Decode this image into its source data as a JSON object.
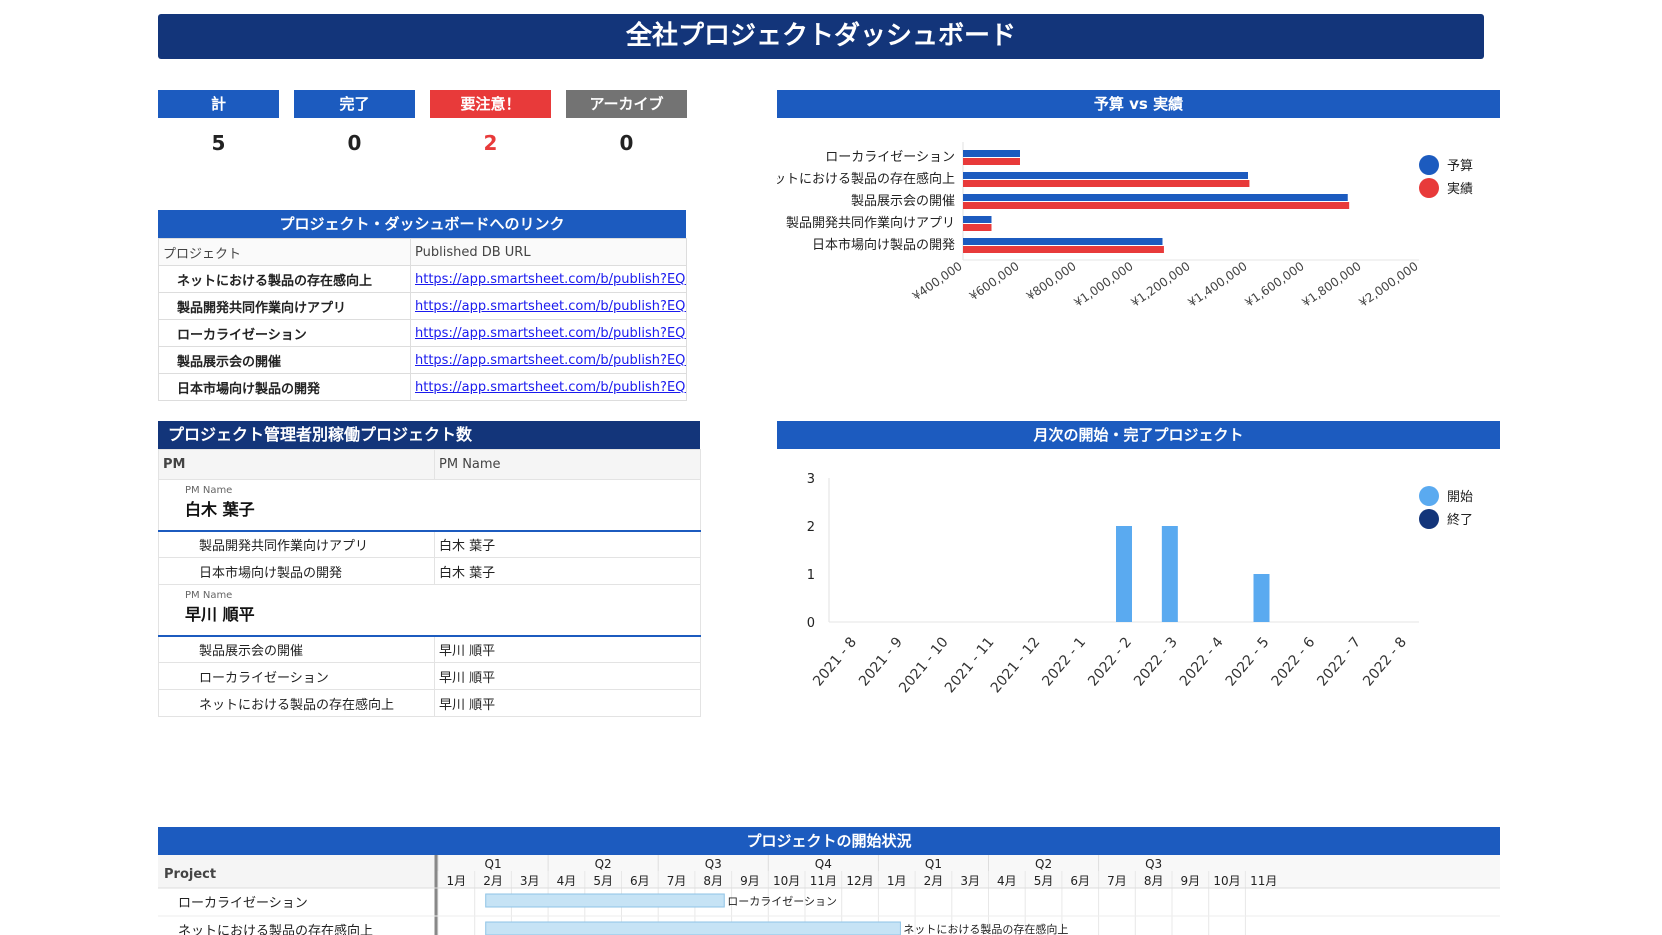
{
  "title": "全社プロジェクトダッシュボード",
  "kpis": [
    {
      "label": "計",
      "value": "5",
      "color": "#1c5bbf",
      "value_color": "#222222"
    },
    {
      "label": "完了",
      "value": "0",
      "color": "#1c5bbf",
      "value_color": "#222222"
    },
    {
      "label": "要注意！",
      "value": "2",
      "color": "#e83a3a",
      "value_color": "#e83a3a"
    },
    {
      "label": "アーカイブ",
      "value": "0",
      "color": "#737373",
      "value_color": "#222222"
    }
  ],
  "links": {
    "title": "プロジェクト・ダッシュボードへのリンク",
    "col_project": "プロジェクト",
    "col_url": "Published DB URL",
    "rows": [
      {
        "project": "ネットにおける製品の存在感向上",
        "url": "https://app.smartsheet.com/b/publish?EQBCT"
      },
      {
        "project": "製品開発共同作業向けアプリ",
        "url": "https://app.smartsheet.com/b/publish?EQBCT"
      },
      {
        "project": "ローカライゼーション",
        "url": "https://app.smartsheet.com/b/publish?EQBCT"
      },
      {
        "project": "製品展示会の開催",
        "url": "https://app.smartsheet.com/b/publish?EQBCT"
      },
      {
        "project": "日本市場向け製品の開発",
        "url": "https://app.smartsheet.com/b/publish?EQBCT"
      }
    ]
  },
  "pm": {
    "title": "プロジェクト管理者別稼働プロジェクト数",
    "col_pm": "PM",
    "col_name": "PM Name",
    "group_label": "PM Name",
    "groups": [
      {
        "name": "白木 葉子",
        "items": [
          {
            "project": "製品開発共同作業向けアプリ",
            "pm": "白木 葉子"
          },
          {
            "project": "日本市場向け製品の開発",
            "pm": "白木 葉子"
          }
        ]
      },
      {
        "name": "早川 順平",
        "items": [
          {
            "project": "製品展示会の開催",
            "pm": "早川 順平"
          },
          {
            "project": "ローカライゼーション",
            "pm": "早川 順平"
          },
          {
            "project": "ネットにおける製品の存在感向上",
            "pm": "早川 順平"
          }
        ]
      }
    ]
  },
  "chart_data": [
    {
      "type": "bar",
      "orientation": "horizontal",
      "title": "予算 vs 実績",
      "categories": [
        "ローカライゼーション",
        "ネットにおける製品の存在感向上",
        "製品展示会の開催",
        "製品開発共同作業向けアプリ",
        "日本市場向け製品の開発"
      ],
      "series": [
        {
          "name": "予算",
          "color": "#1c5bbf",
          "values": [
            600000,
            1400000,
            1750000,
            500000,
            1100000
          ]
        },
        {
          "name": "実績",
          "color": "#e83a3a",
          "values": [
            600000,
            1405000,
            1755000,
            500000,
            1105000
          ]
        }
      ],
      "xlim": [
        400000,
        2000000
      ],
      "tick_labels": [
        "¥400,000",
        "¥600,000",
        "¥800,000",
        "¥1,000,000",
        "¥1,200,000",
        "¥1,400,000",
        "¥1,600,000",
        "¥1,800,000",
        "¥2,000,000"
      ],
      "legend": "top-right"
    },
    {
      "type": "bar",
      "title": "月次の開始・完了プロジェクト",
      "categories": [
        "2021 - 8",
        "2021 - 9",
        "2021 - 10",
        "2021 - 11",
        "2021 - 12",
        "2022 - 1",
        "2022 - 2",
        "2022 - 3",
        "2022 - 4",
        "2022 - 5",
        "2022 - 6",
        "2022 - 7",
        "2022 - 8"
      ],
      "series": [
        {
          "name": "開始",
          "color": "#5aaaf0",
          "values": [
            0,
            0,
            0,
            0,
            0,
            0,
            2,
            2,
            0,
            1,
            0,
            0,
            0
          ]
        },
        {
          "name": "終了",
          "color": "#13357a",
          "values": [
            0,
            0,
            0,
            0,
            0,
            0,
            0,
            0,
            0,
            0,
            0,
            0,
            0
          ]
        }
      ],
      "ylim": [
        0,
        3
      ],
      "yticks": [
        "0",
        "1",
        "2",
        "3"
      ],
      "legend": "top-right"
    }
  ],
  "gantt": {
    "title": "プロジェクトの開始状況",
    "col_project": "Project",
    "quarters": [
      "Q1",
      "Q2",
      "Q3",
      "Q4",
      "Q1",
      "Q2",
      "Q3"
    ],
    "months": [
      "1月",
      "2月",
      "3月",
      "4月",
      "5月",
      "6月",
      "7月",
      "8月",
      "9月",
      "10月",
      "11月",
      "12月",
      "1月",
      "2月",
      "3月",
      "4月",
      "5月",
      "6月",
      "7月",
      "8月",
      "9月",
      "10月",
      "11月"
    ],
    "rows": [
      {
        "project": "ローカライゼーション",
        "bar_label": "ローカライゼーション",
        "start_month": 1.3,
        "end_month": 7.8
      },
      {
        "project": "ネットにおける製品の存在感向上",
        "bar_label": "ネットにおける製品の存在感向上",
        "start_month": 1.3,
        "end_month": 12.6
      }
    ],
    "bar_color": "#c6e3f5"
  }
}
